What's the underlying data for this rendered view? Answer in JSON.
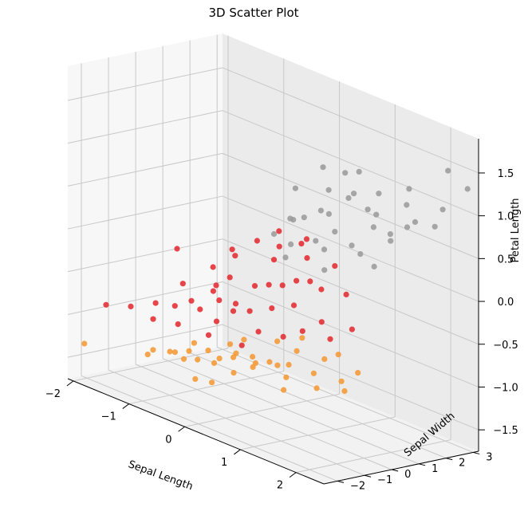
{
  "chart_data": {
    "type": "scatter",
    "projection": "3d",
    "title": "3D Scatter Plot",
    "xlabel": "Sepal Length",
    "ylabel": "Sepal Width",
    "zlabel": "Petal Length",
    "xlim": [
      -2.1,
      2.5
    ],
    "ylim": [
      -2.5,
      3.2
    ],
    "zlim": [
      -1.75,
      1.9
    ],
    "x_ticks": [
      -2,
      -1,
      0,
      1,
      2
    ],
    "y_ticks": [
      -2,
      -1,
      0,
      1,
      2,
      3
    ],
    "z_ticks": [
      -1.5,
      -1.0,
      -0.5,
      0.0,
      0.5,
      1.0,
      1.5
    ],
    "x_tick_labels": [
      "−2",
      "−1",
      "0",
      "1",
      "2"
    ],
    "y_tick_labels": [
      "−2",
      "−1",
      "0",
      "1",
      "2",
      "3"
    ],
    "z_tick_labels": [
      "−1.5",
      "−1.0",
      "−0.5",
      "0.0",
      "0.5",
      "1.0",
      "1.5"
    ],
    "grid": true,
    "legend": "none",
    "series": [
      {
        "color": "#f5972f",
        "points": [
          [
            -1.9,
            -2.3,
            -1.3
          ],
          [
            -1.3,
            -1.0,
            -1.3
          ],
          [
            -1.1,
            -0.6,
            -1.3
          ],
          [
            -1.2,
            -1.4,
            -1.3
          ],
          [
            -0.9,
            -1.2,
            -1.2
          ],
          [
            -0.8,
            -0.7,
            -1.2
          ],
          [
            -0.6,
            -1.3,
            -1.2
          ],
          [
            -0.5,
            -1.0,
            -1.2
          ],
          [
            -0.4,
            -0.4,
            -1.2
          ],
          [
            -0.3,
            -0.8,
            -1.2
          ],
          [
            -0.2,
            -0.2,
            -1.1
          ],
          [
            -0.1,
            -0.5,
            -1.1
          ],
          [
            0.1,
            -0.9,
            -1.2
          ],
          [
            0.2,
            -0.3,
            -1.1
          ],
          [
            0.3,
            -0.6,
            -1.1
          ],
          [
            0.4,
            0.1,
            -1.1
          ],
          [
            0.5,
            -0.4,
            -1.0
          ],
          [
            0.7,
            -0.1,
            -1.0
          ],
          [
            0.9,
            -0.7,
            -1.2
          ],
          [
            1.1,
            0.0,
            -1.0
          ],
          [
            1.3,
            -0.3,
            -1.1
          ],
          [
            0.6,
            0.4,
            -0.9
          ],
          [
            1.0,
            0.6,
            -0.9
          ],
          [
            -0.7,
            -0.2,
            -1.2
          ],
          [
            -0.3,
            0.3,
            -1.0
          ],
          [
            0.0,
            0.0,
            -1.1
          ],
          [
            0.8,
            -0.4,
            -1.1
          ],
          [
            1.5,
            0.2,
            -1.0
          ],
          [
            1.8,
            -0.3,
            -1.0
          ],
          [
            0.2,
            0.5,
            -0.9
          ],
          [
            -1.0,
            -0.1,
            -1.2
          ],
          [
            0.5,
            0.8,
            -0.8
          ],
          [
            1.2,
            0.7,
            -0.8
          ],
          [
            1.6,
            0.6,
            -0.9
          ],
          [
            -0.5,
            0.2,
            -1.1
          ],
          [
            0.0,
            -1.5,
            -1.3
          ],
          [
            -0.2,
            -1.7,
            -1.3
          ]
        ]
      },
      {
        "color": "#e3262b",
        "points": [
          [
            -1.9,
            -1.5,
            -0.9
          ],
          [
            -1.7,
            -1.0,
            -0.9
          ],
          [
            -1.2,
            -0.4,
            -0.8
          ],
          [
            -1.6,
            0.5,
            -0.3
          ],
          [
            -1.0,
            -0.2,
            -0.7
          ],
          [
            -0.9,
            0.4,
            -0.6
          ],
          [
            -0.7,
            0.6,
            -0.4
          ],
          [
            -0.5,
            -0.3,
            -0.8
          ],
          [
            -0.4,
            0.2,
            -0.6
          ],
          [
            -0.3,
            0.7,
            -0.4
          ],
          [
            -0.1,
            0.1,
            -0.6
          ],
          [
            0.0,
            0.6,
            -0.3
          ],
          [
            0.1,
            -0.6,
            -0.9
          ],
          [
            0.2,
            0.3,
            -0.5
          ],
          [
            0.3,
            1.0,
            -0.2
          ],
          [
            0.5,
            0.5,
            -0.4
          ],
          [
            0.7,
            1.1,
            -0.2
          ],
          [
            0.8,
            0.2,
            -0.6
          ],
          [
            1.0,
            1.4,
            -0.2
          ],
          [
            1.3,
            1.0,
            -0.5
          ],
          [
            -1.3,
            0.1,
            -0.6
          ],
          [
            -0.8,
            1.0,
            -0.2
          ],
          [
            -0.6,
            1.4,
            0.0
          ],
          [
            -0.2,
            1.2,
            -0.1
          ],
          [
            0.2,
            1.6,
            0.0
          ],
          [
            -0.4,
            -0.8,
            -0.9
          ],
          [
            0.6,
            -0.1,
            -0.7
          ],
          [
            -1.1,
            0.8,
            -0.4
          ],
          [
            -0.9,
            -0.9,
            -0.9
          ],
          [
            0.0,
            1.8,
            0.1
          ],
          [
            -0.6,
            0.0,
            -0.6
          ],
          [
            0.4,
            1.3,
            -0.2
          ],
          [
            -1.4,
            -0.7,
            -0.8
          ],
          [
            0.9,
            0.7,
            -0.5
          ],
          [
            -0.3,
            1.6,
            0.0
          ],
          [
            -0.7,
            -0.5,
            -0.7
          ],
          [
            0.1,
            0.9,
            -0.3
          ],
          [
            -1.0,
            1.3,
            -0.2
          ],
          [
            -0.2,
            -0.3,
            -0.6
          ],
          [
            0.3,
            -0.4,
            -0.7
          ],
          [
            -0.5,
            2.0,
            0.1
          ],
          [
            -1.2,
            -1.2,
            -0.9
          ],
          [
            1.2,
            0.4,
            -0.6
          ],
          [
            -0.8,
            0.3,
            -0.5
          ],
          [
            0.6,
            1.8,
            0.0
          ],
          [
            -0.1,
            2.2,
            0.1
          ]
        ]
      },
      {
        "color": "#999999",
        "points": [
          [
            -0.3,
            2.0,
            0.3
          ],
          [
            0.0,
            1.9,
            0.4
          ],
          [
            0.3,
            2.2,
            0.5
          ],
          [
            0.6,
            1.8,
            0.4
          ],
          [
            0.9,
            2.4,
            0.7
          ],
          [
            1.2,
            2.0,
            0.6
          ],
          [
            1.5,
            2.6,
            0.9
          ],
          [
            1.8,
            2.3,
            0.8
          ],
          [
            2.1,
            2.7,
            1.0
          ],
          [
            2.4,
            3.0,
            1.3
          ],
          [
            0.2,
            1.0,
            0.2
          ],
          [
            0.5,
            1.3,
            0.3
          ],
          [
            0.8,
            1.0,
            0.3
          ],
          [
            1.1,
            1.4,
            0.4
          ],
          [
            1.4,
            1.1,
            0.4
          ],
          [
            1.7,
            1.6,
            0.6
          ],
          [
            0.0,
            1.5,
            0.4
          ],
          [
            -0.2,
            1.2,
            0.2
          ],
          [
            0.4,
            1.7,
            0.6
          ],
          [
            0.7,
            2.1,
            0.8
          ],
          [
            1.0,
            2.6,
            0.9
          ],
          [
            1.3,
            3.1,
            1.0
          ],
          [
            2.0,
            3.1,
            1.4
          ],
          [
            2.3,
            2.0,
            0.9
          ],
          [
            0.1,
            2.6,
            0.7
          ],
          [
            -0.1,
            2.8,
            0.9
          ],
          [
            0.5,
            2.9,
            1.0
          ],
          [
            1.6,
            1.2,
            0.3
          ],
          [
            0.9,
            0.8,
            0.1
          ],
          [
            0.3,
            0.6,
            0.1
          ],
          [
            1.9,
            1.8,
            0.8
          ],
          [
            -0.4,
            2.4,
            0.6
          ],
          [
            1.1,
            2.3,
            0.7
          ],
          [
            0.6,
            2.5,
            0.8
          ],
          [
            1.5,
            2.0,
            0.6
          ],
          [
            0.2,
            3.0,
            0.9
          ]
        ]
      }
    ]
  }
}
